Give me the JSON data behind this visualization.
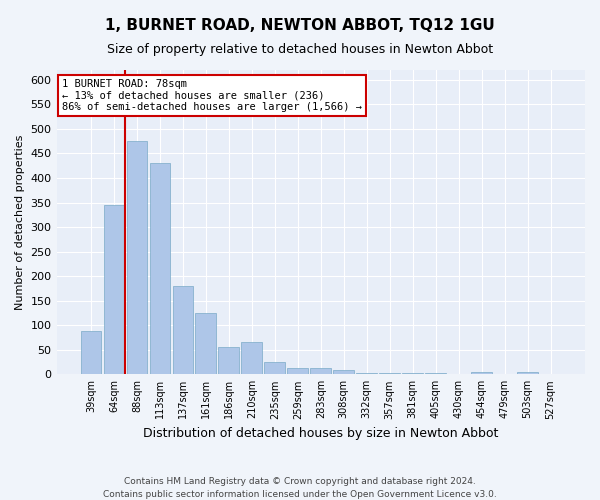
{
  "title": "1, BURNET ROAD, NEWTON ABBOT, TQ12 1GU",
  "subtitle": "Size of property relative to detached houses in Newton Abbot",
  "xlabel": "Distribution of detached houses by size in Newton Abbot",
  "ylabel": "Number of detached properties",
  "categories": [
    "39sqm",
    "64sqm",
    "88sqm",
    "113sqm",
    "137sqm",
    "161sqm",
    "186sqm",
    "210sqm",
    "235sqm",
    "259sqm",
    "283sqm",
    "308sqm",
    "332sqm",
    "357sqm",
    "381sqm",
    "405sqm",
    "430sqm",
    "454sqm",
    "479sqm",
    "503sqm",
    "527sqm"
  ],
  "values": [
    88,
    345,
    475,
    430,
    180,
    125,
    55,
    65,
    25,
    12,
    12,
    8,
    3,
    3,
    3,
    3,
    0,
    5,
    0,
    5,
    0
  ],
  "bar_color": "#aec6e8",
  "bar_edge_color": "#7aaac8",
  "vline_color": "#cc0000",
  "annotation_text": "1 BURNET ROAD: 78sqm\n← 13% of detached houses are smaller (236)\n86% of semi-detached houses are larger (1,566) →",
  "annotation_box_color": "#ffffff",
  "annotation_box_edge": "#cc0000",
  "ylim": [
    0,
    620
  ],
  "yticks": [
    0,
    50,
    100,
    150,
    200,
    250,
    300,
    350,
    400,
    450,
    500,
    550,
    600
  ],
  "footer1": "Contains HM Land Registry data © Crown copyright and database right 2024.",
  "footer2": "Contains public sector information licensed under the Open Government Licence v3.0.",
  "bg_color": "#f0f4fa",
  "plot_bg_color": "#e8eef8"
}
